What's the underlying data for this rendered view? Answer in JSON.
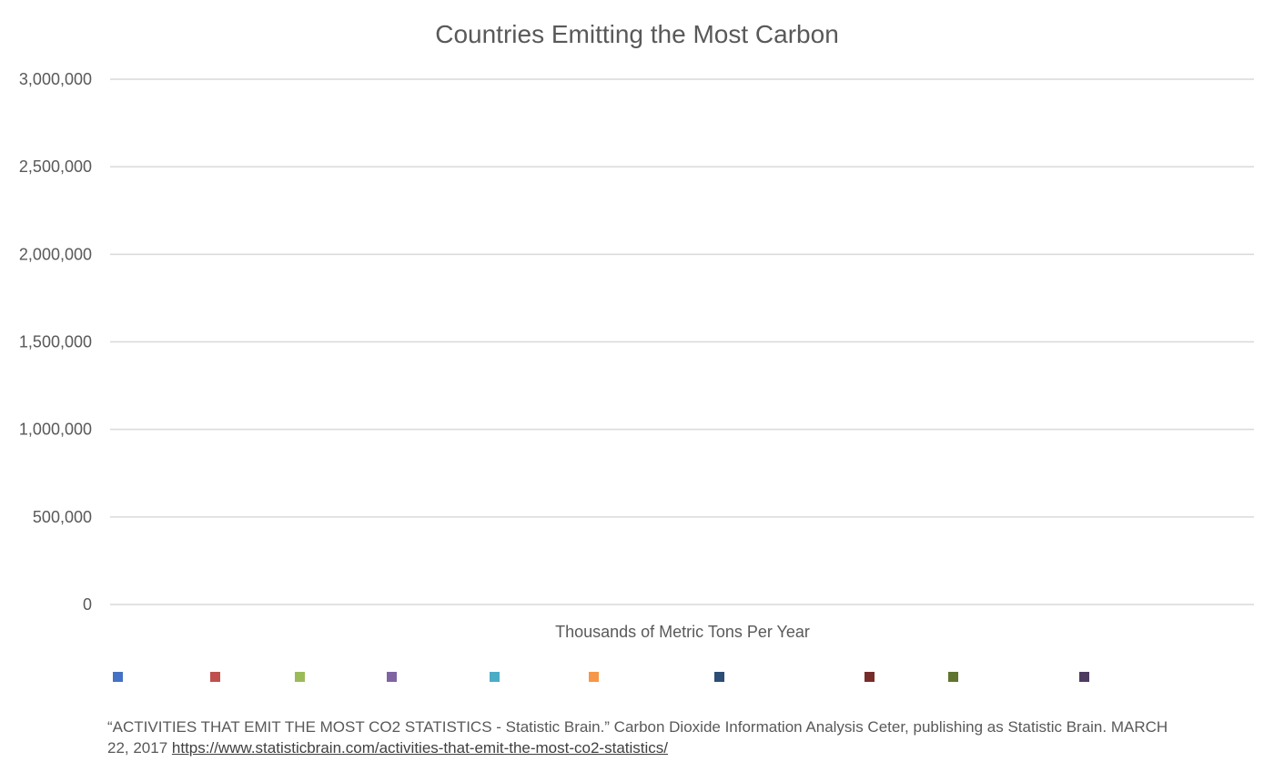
{
  "chart_data": {
    "type": "bar",
    "title": "Countries Emitting the Most Carbon",
    "xlabel": "Thousands of Metric Tons Per Year",
    "ylabel": "",
    "ylim": [
      0,
      3000000
    ],
    "yticks": [
      0,
      500000,
      1000000,
      1500000,
      2000000,
      2500000,
      3000000
    ],
    "ytick_labels": [
      "0",
      "500,000",
      "1,000,000",
      "1,500,000",
      "2,000,000",
      "2,500,000",
      "3,000,000"
    ],
    "grid": true,
    "legend_position": "bottom",
    "categories": [
      ""
    ],
    "series": [
      {
        "color": "#4472C4",
        "values": [
          0
        ]
      },
      {
        "color": "#C0504D",
        "values": [
          0
        ]
      },
      {
        "color": "#9BBB59",
        "values": [
          0
        ]
      },
      {
        "color": "#8064A2",
        "values": [
          0
        ]
      },
      {
        "color": "#4BACC6",
        "values": [
          0
        ]
      },
      {
        "color": "#F79646",
        "values": [
          0
        ]
      },
      {
        "color": "#2C4D75",
        "values": [
          0
        ]
      },
      {
        "color": "#772C2A",
        "values": [
          0
        ]
      },
      {
        "color": "#5F7530",
        "values": [
          0
        ]
      },
      {
        "color": "#4D3B62",
        "values": [
          0
        ]
      }
    ]
  },
  "source": {
    "text": "“ACTIVITIES THAT EMIT THE MOST CO2 STATISTICS -  Statistic Brain.” Carbon Dioxide Information Analysis Ceter, publishing as Statistic Brain. MARCH 22, 2017 ",
    "link_text": "https://www.statisticbrain.com/activities-that-emit-the-most-co2-statistics/"
  }
}
